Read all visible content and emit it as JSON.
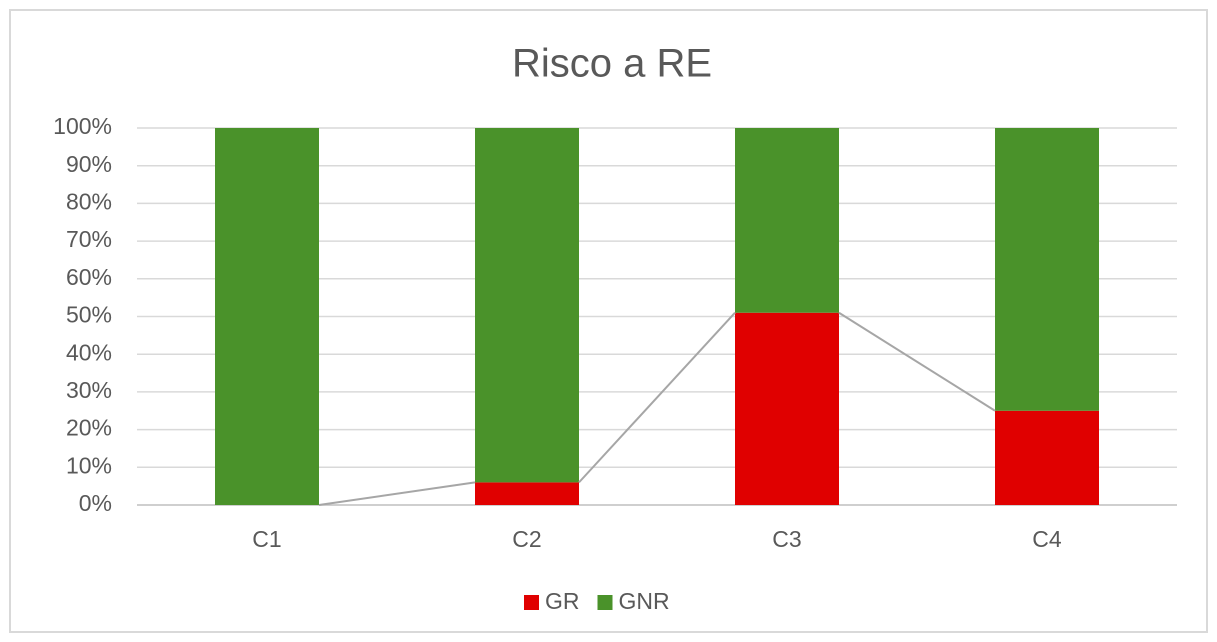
{
  "chart_data": {
    "type": "bar",
    "stacked": true,
    "title": "Risco a RE",
    "categories": [
      "C1",
      "C2",
      "C3",
      "C4"
    ],
    "series": [
      {
        "name": "GR",
        "color": "#e00000",
        "values": [
          0,
          6,
          51,
          25
        ]
      },
      {
        "name": "GNR",
        "color": "#4a922a",
        "values": [
          100,
          94,
          49,
          75
        ]
      }
    ],
    "series_lines": true,
    "ylim": [
      0,
      100
    ],
    "yticks": [
      {
        "value": 0,
        "label": "0%"
      },
      {
        "value": 10,
        "label": "10%"
      },
      {
        "value": 20,
        "label": "20%"
      },
      {
        "value": 30,
        "label": "30%"
      },
      {
        "value": 40,
        "label": "40%"
      },
      {
        "value": 50,
        "label": "50%"
      },
      {
        "value": 60,
        "label": "60%"
      },
      {
        "value": 70,
        "label": "70%"
      },
      {
        "value": 80,
        "label": "80%"
      },
      {
        "value": 90,
        "label": "90%"
      },
      {
        "value": 100,
        "label": "100%"
      }
    ],
    "grid": true,
    "legend": "bottom"
  }
}
